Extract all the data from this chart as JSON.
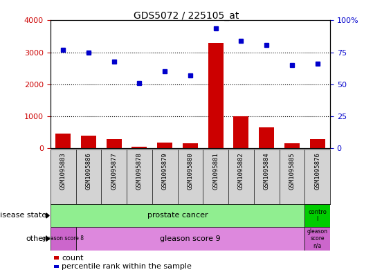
{
  "title": "GDS5072 / 225105_at",
  "samples": [
    "GSM1095883",
    "GSM1095886",
    "GSM1095877",
    "GSM1095878",
    "GSM1095879",
    "GSM1095880",
    "GSM1095881",
    "GSM1095882",
    "GSM1095884",
    "GSM1095885",
    "GSM1095876"
  ],
  "counts": [
    450,
    400,
    275,
    50,
    175,
    150,
    3300,
    1000,
    650,
    150,
    275
  ],
  "percentiles": [
    77,
    75,
    68,
    51,
    60,
    57,
    94,
    84,
    81,
    65,
    66
  ],
  "bar_color": "#cc0000",
  "dot_color": "#0000cc",
  "ylim_left": [
    0,
    4000
  ],
  "yticks_left": [
    0,
    1000,
    2000,
    3000,
    4000
  ],
  "ytick_labels_left": [
    "0",
    "1000",
    "2000",
    "3000",
    "4000"
  ],
  "yticks_right": [
    0,
    25,
    50,
    75,
    100
  ],
  "ytick_labels_right": [
    "0",
    "25",
    "50",
    "75",
    "100%"
  ],
  "dotted_lines": [
    1000,
    2000,
    3000
  ],
  "bar_color_hex": "#cc0000",
  "dot_color_hex": "#0000cc",
  "axis_label_color_left": "#cc0000",
  "axis_label_color_right": "#0000cc",
  "tick_area_bg": "#d3d3d3",
  "disease_green_light": "#90ee90",
  "disease_green_dark": "#00cc00",
  "gleason8_color": "#cc66cc",
  "gleason9_color": "#dd88dd",
  "gleasonna_color": "#cc66cc"
}
